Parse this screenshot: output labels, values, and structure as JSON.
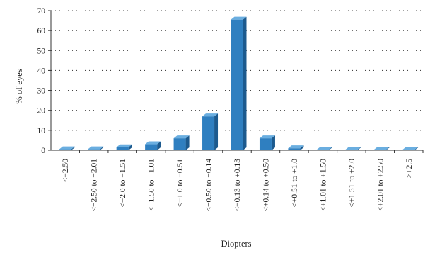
{
  "chart_data": {
    "type": "bar",
    "xlabel": "Diopters",
    "ylabel": "% of eyes",
    "ylim": [
      0,
      70
    ],
    "yticks": [
      0,
      10,
      20,
      30,
      40,
      50,
      60,
      70
    ],
    "grid": true,
    "legend": "none",
    "categories": [
      "<−2.50",
      "<−2.50 to −2.01",
      "<−2.0 to −1.51",
      "<−1.50 to −1.01",
      "<−1.0 to −0.51",
      "<−0.50 to −0.14",
      "<−0.13 to +0.13",
      "<+0.14 to +0.50",
      "<+0.51 to +1.0",
      "<+1.01 to +1.50",
      "<+1.51 to +2.0",
      "<+2.01 to +2.50",
      ">+2.5"
    ],
    "values": [
      0.5,
      0.5,
      1.5,
      3.0,
      6.0,
      17.0,
      65.5,
      6.0,
      1.0,
      0.3,
      0.3,
      0.3,
      0.3
    ]
  },
  "colors": {
    "bar_front": "#2f7fc0",
    "bar_top": "#6aaee0",
    "bar_side": "#1c5a8e",
    "grid": "#444444",
    "axis": "#333333"
  }
}
